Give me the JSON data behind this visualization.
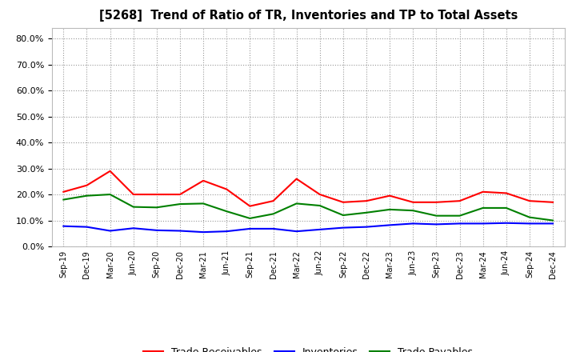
{
  "title": "[5268]  Trend of Ratio of TR, Inventories and TP to Total Assets",
  "x_labels": [
    "Sep-19",
    "Dec-19",
    "Mar-20",
    "Jun-20",
    "Sep-20",
    "Dec-20",
    "Mar-21",
    "Jun-21",
    "Sep-21",
    "Dec-21",
    "Mar-22",
    "Jun-22",
    "Sep-22",
    "Dec-22",
    "Mar-23",
    "Jun-23",
    "Sep-23",
    "Dec-23",
    "Mar-24",
    "Jun-24",
    "Sep-24",
    "Dec-24"
  ],
  "trade_receivables": [
    0.21,
    0.235,
    0.29,
    0.2,
    0.2,
    0.2,
    0.253,
    0.22,
    0.155,
    0.175,
    0.26,
    0.2,
    0.17,
    0.175,
    0.195,
    0.17,
    0.17,
    0.175,
    0.21,
    0.205,
    0.175,
    0.17
  ],
  "inventories": [
    0.078,
    0.075,
    0.06,
    0.07,
    0.062,
    0.06,
    0.055,
    0.058,
    0.068,
    0.068,
    0.058,
    0.065,
    0.072,
    0.075,
    0.082,
    0.088,
    0.085,
    0.088,
    0.088,
    0.09,
    0.088,
    0.088
  ],
  "trade_payables": [
    0.18,
    0.195,
    0.2,
    0.152,
    0.15,
    0.163,
    0.165,
    0.135,
    0.108,
    0.125,
    0.165,
    0.157,
    0.12,
    0.13,
    0.142,
    0.138,
    0.118,
    0.118,
    0.148,
    0.148,
    0.112,
    0.1
  ],
  "tr_color": "#ff0000",
  "inv_color": "#0000ff",
  "tp_color": "#008000",
  "ylim": [
    0.0,
    0.84
  ],
  "yticks": [
    0.0,
    0.1,
    0.2,
    0.3,
    0.4,
    0.5,
    0.6,
    0.7,
    0.8
  ],
  "bg_color": "#ffffff",
  "plot_bg_color": "#ffffff",
  "grid_color": "#999999",
  "legend_labels": [
    "Trade Receivables",
    "Inventories",
    "Trade Payables"
  ]
}
